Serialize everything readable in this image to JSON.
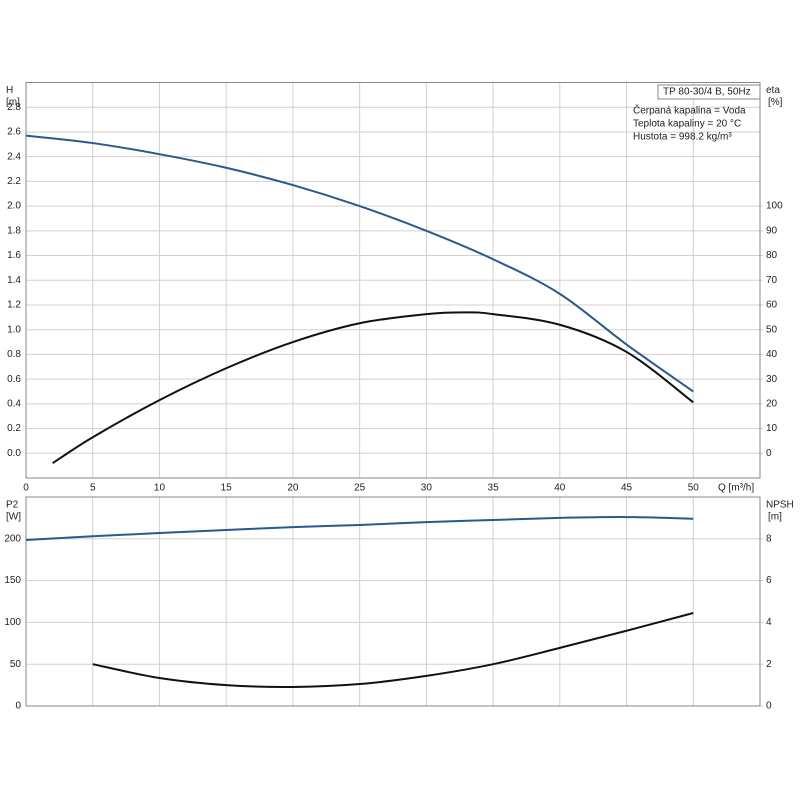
{
  "chart_data": [
    {
      "type": "line",
      "ylabel": "H",
      "yunit": "[m]",
      "y2label": "eta",
      "y2unit": "[%]",
      "xlabel": "Q [m³/h]",
      "annotations": [
        "TP 80-30/4 B, 50Hz",
        "Čerpaná kapalina = Voda",
        "Teplota kapaliny = 20 °C",
        "Hustota = 998.2 kg/m³"
      ],
      "xlim": [
        0,
        55
      ],
      "xticks": [
        0,
        5,
        10,
        15,
        20,
        25,
        30,
        35,
        40,
        45,
        50
      ],
      "ylim": [
        -0.2,
        3.0
      ],
      "yticks": [
        {
          "value": 0,
          "label": "0.0"
        },
        0.2,
        0.4,
        0.6,
        0.8,
        {
          "value": 1,
          "label": "1.0"
        },
        1.2,
        1.4,
        1.6,
        1.8,
        {
          "value": 2,
          "label": "2.0"
        },
        2.2,
        2.4,
        2.6,
        2.8
      ],
      "y2lim": [
        -10,
        150
      ],
      "y2ticks": [
        0,
        10,
        20,
        30,
        40,
        50,
        60,
        70,
        80,
        90,
        100
      ],
      "grid": true,
      "series": [
        {
          "color": "#2a5a8c",
          "x": [
            0,
            5,
            10,
            15,
            20,
            25,
            30,
            35,
            40,
            45,
            50
          ],
          "values": [
            2.57,
            2.51,
            2.42,
            2.31,
            2.17,
            2.0,
            1.8,
            1.57,
            1.29,
            0.88,
            0.5
          ]
        },
        {
          "color": "#111111",
          "axis": "y2",
          "x": [
            2,
            5,
            10,
            15,
            20,
            25,
            30,
            33,
            35,
            40,
            45,
            50
          ],
          "values": [
            -4,
            6.5,
            21.5,
            34.4,
            45,
            52.6,
            56.3,
            57,
            56.3,
            52,
            41,
            20.6
          ]
        }
      ]
    },
    {
      "type": "line",
      "ylabel": "P2",
      "yunit": "[W]",
      "y2label": "NPSH",
      "y2unit": "[m]",
      "xlim": [
        0,
        55
      ],
      "ylim": [
        0,
        250
      ],
      "yticks": [
        0,
        50,
        100,
        150,
        200
      ],
      "y2lim": [
        0,
        10
      ],
      "y2ticks": [
        0,
        2,
        4,
        6,
        8
      ],
      "grid": true,
      "series": [
        {
          "color": "#2a5a8c",
          "x": [
            0,
            5,
            10,
            15,
            20,
            25,
            30,
            35,
            40,
            45,
            50
          ],
          "values": [
            198.6,
            203,
            207,
            210.5,
            214,
            216.5,
            220,
            222.5,
            225,
            226,
            224
          ]
        },
        {
          "color": "#111111",
          "axis": "y2",
          "x": [
            5,
            10,
            15,
            20,
            25,
            30,
            35,
            40,
            45,
            50
          ],
          "values": [
            2.0,
            1.34,
            1.0,
            0.91,
            1.05,
            1.44,
            2.0,
            2.78,
            3.6,
            4.45
          ]
        }
      ]
    }
  ]
}
